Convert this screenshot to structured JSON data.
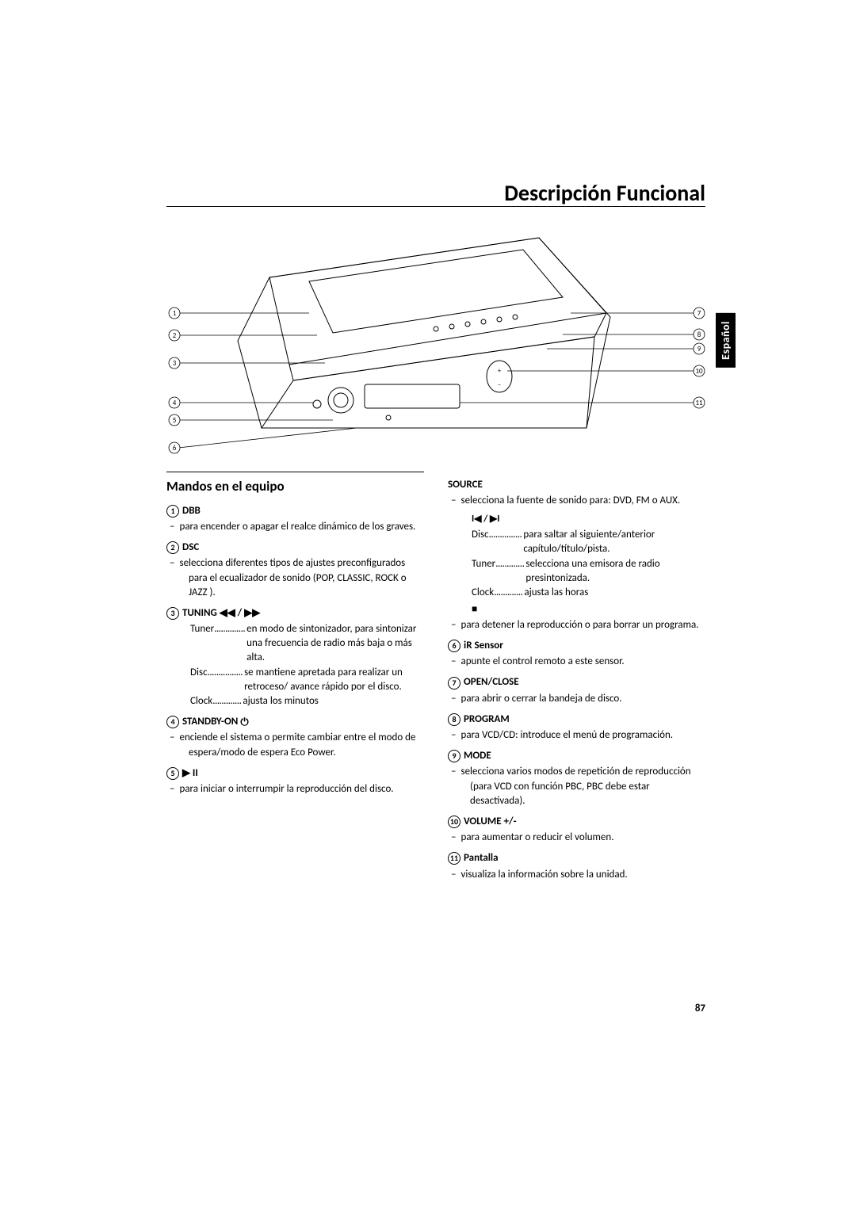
{
  "page_title": "Descripción Funcional",
  "side_tab": "Español",
  "page_number": "87",
  "section_heading": "Mandos en el equipo",
  "diagram": {
    "left_callouts": [
      "1",
      "2",
      "3",
      "4",
      "5",
      "6"
    ],
    "right_callouts": [
      "7",
      "8",
      "9",
      "10",
      "11"
    ]
  },
  "left_col": [
    {
      "num": "1",
      "label": "DBB",
      "desc": "para encender o apagar el realce dinámico de los graves."
    },
    {
      "num": "2",
      "label": "DSC",
      "desc": "selecciona diferentes tipos de ajustes preconfigurados para el ecualizador de sonido (POP, CLASSIC, ROCK o JAZZ )."
    },
    {
      "num": "3",
      "label": "TUNING ◀◀ / ▶▶",
      "subrows": [
        {
          "key": "Tuner",
          "dots": "..............",
          "val": "en modo de sintonizador, para sintonizar una frecuencia de radio más baja o más alta."
        },
        {
          "key": "Disc",
          "dots": "................",
          "val": "se mantiene apretada para realizar un retroceso/ avance rápido por el disco."
        },
        {
          "key": "Clock",
          "dots": ".............",
          "val": "ajusta los minutos"
        }
      ]
    },
    {
      "num": "4",
      "label": "STANDBY-ON",
      "label_icon": "⏻",
      "desc": "enciende el sistema o permite cambiar entre el modo de espera/modo de espera Eco Power."
    },
    {
      "num": "5",
      "label": "▶ II",
      "desc": "para iniciar o interrumpir la reproducción del disco."
    }
  ],
  "right_col": [
    {
      "label": "SOURCE",
      "desc": "selecciona la fuente de sonido para: DVD, FM o AUX.",
      "sym1": "I◀ / ▶I",
      "subrows": [
        {
          "key": "Disc",
          "dots": "...............",
          "val": "para saltar al siguiente/anterior capítulo/título/pista."
        },
        {
          "key": "Tuner",
          "dots": ".............",
          "val": "selecciona una emisora de radio presintonizada."
        },
        {
          "key": "Clock",
          "dots": ".............",
          "val": "ajusta las horas"
        }
      ],
      "sym2": "■",
      "desc2": "para detener la reproducción o para borrar un programa."
    },
    {
      "num": "6",
      "label": "iR Sensor",
      "desc": "apunte el control remoto a este sensor."
    },
    {
      "num": "7",
      "label": "OPEN/CLOSE",
      "desc": "para abrir o cerrar la bandeja de disco."
    },
    {
      "num": "8",
      "label": "PROGRAM",
      "desc": "para VCD/CD: introduce el menú de programación."
    },
    {
      "num": "9",
      "label": "MODE",
      "desc": "selecciona varios modos de repetición de reproducción (para VCD con función PBC, PBC debe estar desactivada)."
    },
    {
      "num": "10",
      "label": "VOLUME +/-",
      "desc": "para aumentar o reducir el volumen."
    },
    {
      "num": "11",
      "label": "Pantalla",
      "desc": "visualiza la información sobre la unidad."
    }
  ]
}
